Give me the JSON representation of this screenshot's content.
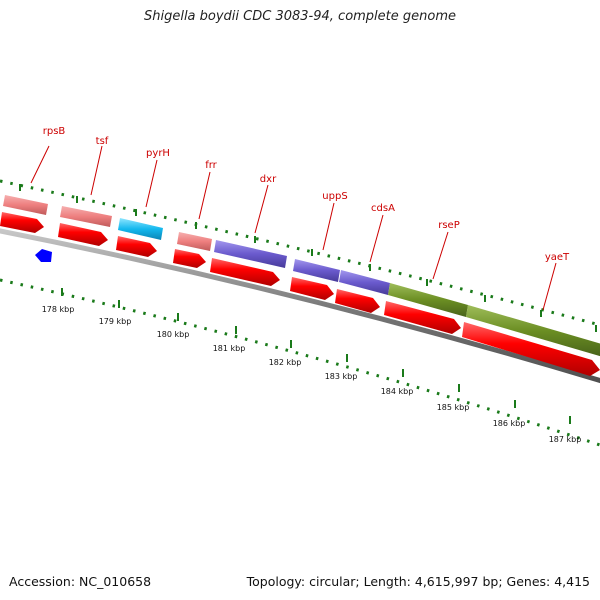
{
  "title": "Shigella boydii CDC 3083-94, complete genome",
  "footer": {
    "accession": "Accession: NC_010658",
    "summary": "Topology: circular; Length: 4,615,997 bp; Genes: 4,415"
  },
  "gene_labels": [
    "rpsB",
    "tsf",
    "pyrH",
    "frr",
    "dxr",
    "uppS",
    "cdsA",
    "rseP",
    "yaeT"
  ],
  "kbp_ticks": [
    "178 kbp",
    "179 kbp",
    "180 kbp",
    "181 kbp",
    "182 kbp",
    "183 kbp",
    "184 kbp",
    "185 kbp",
    "186 kbp",
    "187 kbp"
  ],
  "colors": {
    "cds": "#ff0000",
    "label": "#cc0000",
    "ribosomal": "#f08080",
    "nucleotide": "#00bfff",
    "isoprenoid": "#6a5acd",
    "envelope": "#6b8e23",
    "other": "#0000ff",
    "tick": "#1a7a1a",
    "backbone": "#808080"
  }
}
